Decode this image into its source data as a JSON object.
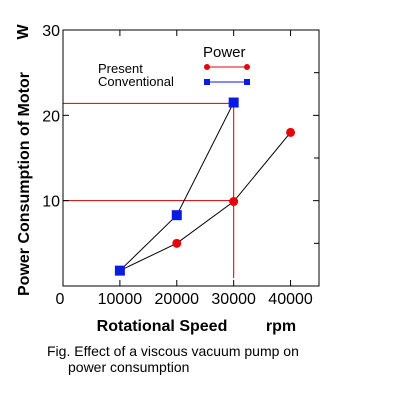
{
  "chart_data": {
    "type": "line",
    "xlabel": "Rotational Speed",
    "xunit": "rpm",
    "ylabel": "Power Consumption of Motor",
    "yunit": "W",
    "xlim": [
      0,
      45000
    ],
    "ylim": [
      0,
      30
    ],
    "x_ticks": [
      "0",
      "10000",
      "20000",
      "30000",
      "40000"
    ],
    "y_ticks": [
      "10",
      "20",
      "30"
    ],
    "legend_title": "Power",
    "legend_position": "top-right",
    "grid": false,
    "series": [
      {
        "name": "Present",
        "color": "#e8000b",
        "marker": "circle",
        "x": [
          10000,
          20000,
          30000,
          40000
        ],
        "y": [
          1.8,
          5.0,
          9.9,
          18.0
        ]
      },
      {
        "name": "Conventional",
        "color": "#0a1ce0",
        "marker": "square",
        "x": [
          10000,
          20000,
          30000
        ],
        "y": [
          1.8,
          8.3,
          21.5
        ]
      }
    ],
    "reference_lines": {
      "color": "#cc0000",
      "x": 30000,
      "y": [
        10,
        21.4
      ]
    }
  },
  "caption": {
    "line1": "Fig.  Effect of a viscous vacuum pump on",
    "line2": "power consumption"
  }
}
